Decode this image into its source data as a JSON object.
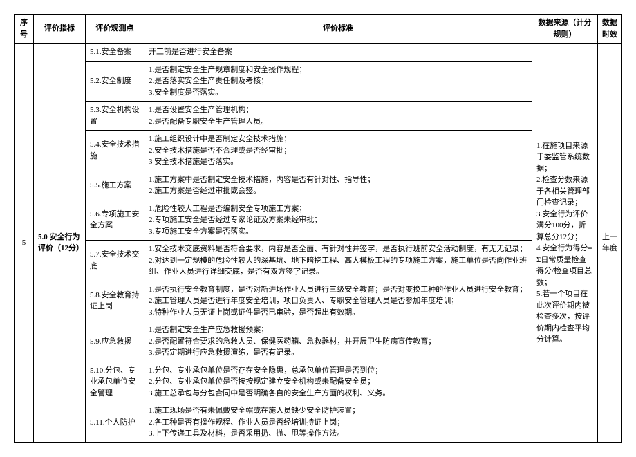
{
  "headers": {
    "seq": "序号",
    "indicator": "评价指标",
    "observation": "评价观测点",
    "standard": "评价标准",
    "source": "数据来源（计分规则）",
    "time": "数据时效"
  },
  "seq": "5",
  "indicator": "5.0 安全行为评价（12分）",
  "time": "上一年度",
  "source": {
    "l1": "1.在施项目来源于委监管系统数据；",
    "l2": "2.检查分数来源于各相关管理部门检查记录；",
    "l3": "3.安全行为评价满分100分，折算总分12分；",
    "l4": "4.安全行为得分=Σ日常质量检查得分/检查项目总数；",
    "l5": "5.若一个项目在此次评价期内被检查多次，按评价期内检查平均分计算。"
  },
  "rows": [
    {
      "obs": "5.1.安全备案",
      "std": [
        "开工前是否进行安全备案"
      ]
    },
    {
      "obs": "5.2.安全制度",
      "std": [
        "1.是否制定安全生产规章制度和安全操作规程；",
        "2.是否落实安全生产责任制及考核；",
        "3.安全制度是否落实。"
      ]
    },
    {
      "obs": "5.3.安全机构设置",
      "std": [
        "1.是否设置安全生产管理机构；",
        "2.是否配备专职安全生产管理人员。"
      ]
    },
    {
      "obs": "5.4.安全技术措施",
      "std": [
        "1.施工组织设计中是否制定安全技术措施；",
        "2.安全技术措施是否不合理或是否经审批；",
        "3 安全技术措施是否落实。"
      ]
    },
    {
      "obs": "5.5.施工方案",
      "std": [
        "1.施工方案中是否制定安全技术措施，内容是否有针对性、指导性；",
        "2.施工方案是否经过审批或会签。"
      ]
    },
    {
      "obs": "5.6.专项施工安全方案",
      "std": [
        "1.危险性较大工程是否编制安全专项施工方案；",
        "2.专项施工安全是否经过专家论证及方案未经审批；",
        "3.专项施工安全方案是否落实。"
      ]
    },
    {
      "obs": "5.7.安全技术交底",
      "std": [
        "1.安全技术交底资料是否符合要求，内容是否全面、有针对性并签字，是否执行班前安全活动制度，有无无记录；",
        "2.对达到一定规模的危险性较大的深基坑、地下暗挖工程、高大模板工程的专项施工方案，施工单位是否向作业班组、作业人员进行详细交底，是否有双方签字记录。"
      ]
    },
    {
      "obs": "5.8.安全教育持证上岗",
      "std": [
        "1.是否执行安全教育制度，是否对新进场作业人员进行三级安全教育；是否对变换工种的作业人员进行安全教育；",
        "2.施工管理人员是否进行年度安全培训，项目负责人、专职安全管理人员是否参加年度培训；",
        "3.特种作业人员无证上岗或证件是否已审验，是否超出有效期。"
      ]
    },
    {
      "obs": "5.9.应急救援",
      "std": [
        "1.是否制定安全生产应急救援预案；",
        "2.是否配置符合要求的急救人员、保健医药箱、急救器材，并开展卫生防病宣传教育；",
        "3.是否定期进行应急救援演练，是否有记录。"
      ]
    },
    {
      "obs": "5.10.分包、专业承包单位安全管理",
      "std": [
        "1.分包、专业承包单位是否存在安全隐患，总承包单位管理是否到位；",
        "2.分包、专业承包单位是否按按规定建立安全机构或未配备安全员；",
        "3.施工总承包与分包合同中是否明确各自的安全生产方面的权利、义务。"
      ]
    },
    {
      "obs": "5.11.个人防护",
      "std": [
        "1.施工现场是否有未佩戴安全帽或在施人员缺少安全防护装置；",
        "2.各工种是否有操作规程、作业人员是否经培训持证上岗；",
        "3.上下传递工具及材料，是否采用扔、抛、甩等操作方法。"
      ]
    }
  ]
}
